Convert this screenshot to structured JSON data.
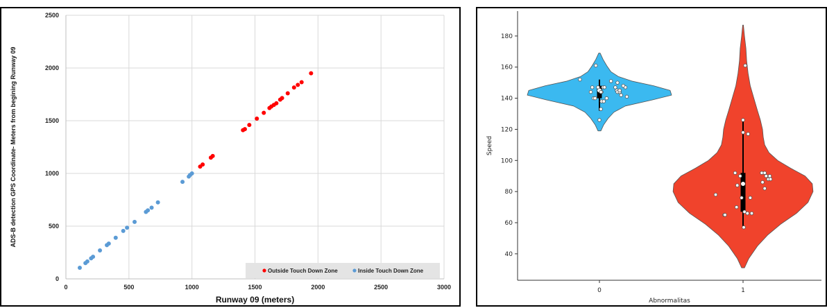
{
  "chart_data": [
    {
      "type": "scatter",
      "title": "",
      "xlabel": "Runway 09 (meters)",
      "ylabel": "ADS-B detection GPS Coordinate- Meters from begining Runway 09",
      "xlim": [
        0,
        3000
      ],
      "ylim": [
        0,
        2500
      ],
      "xticks": [
        "0",
        "500",
        "1000",
        "1500",
        "2000",
        "2500",
        "3000"
      ],
      "yticks": [
        "0",
        "500",
        "1000",
        "1500",
        "2000",
        "2500"
      ],
      "grid": true,
      "legend_position": "bottom-right",
      "series": [
        {
          "name": "Outside Touch Down Zone",
          "color": "#ff0000",
          "x": [
            1065,
            1085,
            1150,
            1165,
            1405,
            1420,
            1455,
            1515,
            1570,
            1615,
            1630,
            1650,
            1670,
            1700,
            1715,
            1760,
            1810,
            1840,
            1870,
            1945
          ],
          "y": [
            1065,
            1085,
            1150,
            1165,
            1410,
            1420,
            1460,
            1520,
            1575,
            1620,
            1635,
            1650,
            1665,
            1700,
            1715,
            1760,
            1815,
            1840,
            1865,
            1950
          ]
        },
        {
          "name": "Inside Touch Down Zone",
          "color": "#5b9bd5",
          "x": [
            110,
            155,
            170,
            200,
            215,
            270,
            325,
            340,
            395,
            455,
            485,
            545,
            635,
            650,
            680,
            730,
            925,
            975,
            985,
            1000
          ],
          "y": [
            105,
            150,
            165,
            195,
            210,
            270,
            320,
            335,
            390,
            455,
            485,
            540,
            635,
            650,
            675,
            725,
            920,
            970,
            985,
            1000
          ]
        }
      ]
    },
    {
      "type": "violin",
      "title": "",
      "xlabel": "Abnormalitas",
      "ylabel": "Speed",
      "categories": [
        "0",
        "1"
      ],
      "ylim": [
        23,
        196
      ],
      "yticks": [
        "40",
        "60",
        "80",
        "100",
        "120",
        "140",
        "160",
        "180"
      ],
      "grid": false,
      "series": [
        {
          "category": "0",
          "color": "#3bb9f0",
          "density": [
            [
              119,
              0.02
            ],
            [
              123,
              0.06
            ],
            [
              127,
              0.12
            ],
            [
              131,
              0.2
            ],
            [
              135,
              0.36
            ],
            [
              139,
              0.74
            ],
            [
              142,
              1.0
            ],
            [
              145,
              0.98
            ],
            [
              148,
              0.75
            ],
            [
              151,
              0.45
            ],
            [
              154,
              0.26
            ],
            [
              157,
              0.16
            ],
            [
              161,
              0.1
            ],
            [
              165,
              0.05
            ],
            [
              169,
              0.01
            ]
          ],
          "box": {
            "q1": 140,
            "median": 145,
            "q3": 148,
            "whisker_low": 132,
            "whisker_high": 152
          },
          "points": [
            [
              -0.27,
              152
            ],
            [
              -0.05,
              161
            ],
            [
              -0.1,
              147
            ],
            [
              -0.08,
              140
            ],
            [
              -0.06,
              140
            ],
            [
              0.03,
              144
            ],
            [
              0.05,
              147
            ],
            [
              0.07,
              147
            ],
            [
              -0.02,
              147
            ],
            [
              0.02,
              144
            ],
            [
              0.1,
              140
            ],
            [
              0.03,
              138
            ],
            [
              0.06,
              138
            ],
            [
              0.02,
              133
            ],
            [
              0.0,
              126
            ],
            [
              0.16,
              151
            ],
            [
              0.22,
              147
            ],
            [
              0.24,
              145
            ],
            [
              0.25,
              144
            ],
            [
              0.28,
              144
            ],
            [
              0.28,
              145
            ],
            [
              0.3,
              142
            ],
            [
              0.36,
              147
            ],
            [
              0.38,
              141
            ],
            [
              0.25,
              150
            ],
            [
              -0.12,
              144
            ],
            [
              0.33,
              148
            ]
          ]
        },
        {
          "category": "1",
          "color": "#f0432c",
          "density": [
            [
              31,
              0.02
            ],
            [
              37,
              0.08
            ],
            [
              45,
              0.2
            ],
            [
              52,
              0.34
            ],
            [
              59,
              0.52
            ],
            [
              66,
              0.74
            ],
            [
              73,
              0.9
            ],
            [
              80,
              0.97
            ],
            [
              85,
              0.96
            ],
            [
              90,
              0.86
            ],
            [
              95,
              0.66
            ],
            [
              100,
              0.48
            ],
            [
              105,
              0.36
            ],
            [
              110,
              0.3
            ],
            [
              115,
              0.28
            ],
            [
              120,
              0.27
            ],
            [
              126,
              0.24
            ],
            [
              132,
              0.2
            ],
            [
              140,
              0.15
            ],
            [
              148,
              0.1
            ],
            [
              156,
              0.07
            ],
            [
              164,
              0.05
            ],
            [
              172,
              0.04
            ],
            [
              180,
              0.02
            ],
            [
              187,
              0.005
            ]
          ],
          "box": {
            "q1": 67,
            "median": 85,
            "q3": 92,
            "whisker_low": 57,
            "whisker_high": 126
          },
          "points": [
            [
              -0.38,
              78
            ],
            [
              -0.26,
              65
            ],
            [
              -0.25,
              65
            ],
            [
              -0.11,
              92
            ],
            [
              -0.08,
              84
            ],
            [
              -0.09,
              70
            ],
            [
              -0.04,
              90
            ],
            [
              -0.02,
              76
            ],
            [
              0.0,
              126
            ],
            [
              0.0,
              118
            ],
            [
              0.01,
              57
            ],
            [
              0.02,
              67
            ],
            [
              0.03,
              161
            ],
            [
              0.07,
              117
            ],
            [
              0.06,
              66
            ],
            [
              0.1,
              76
            ],
            [
              0.12,
              66
            ],
            [
              0.26,
              92
            ],
            [
              0.27,
              86
            ],
            [
              0.3,
              92
            ],
            [
              0.3,
              82
            ],
            [
              0.32,
              90
            ],
            [
              0.35,
              88
            ],
            [
              0.37,
              90
            ],
            [
              0.38,
              88
            ]
          ]
        }
      ]
    }
  ]
}
